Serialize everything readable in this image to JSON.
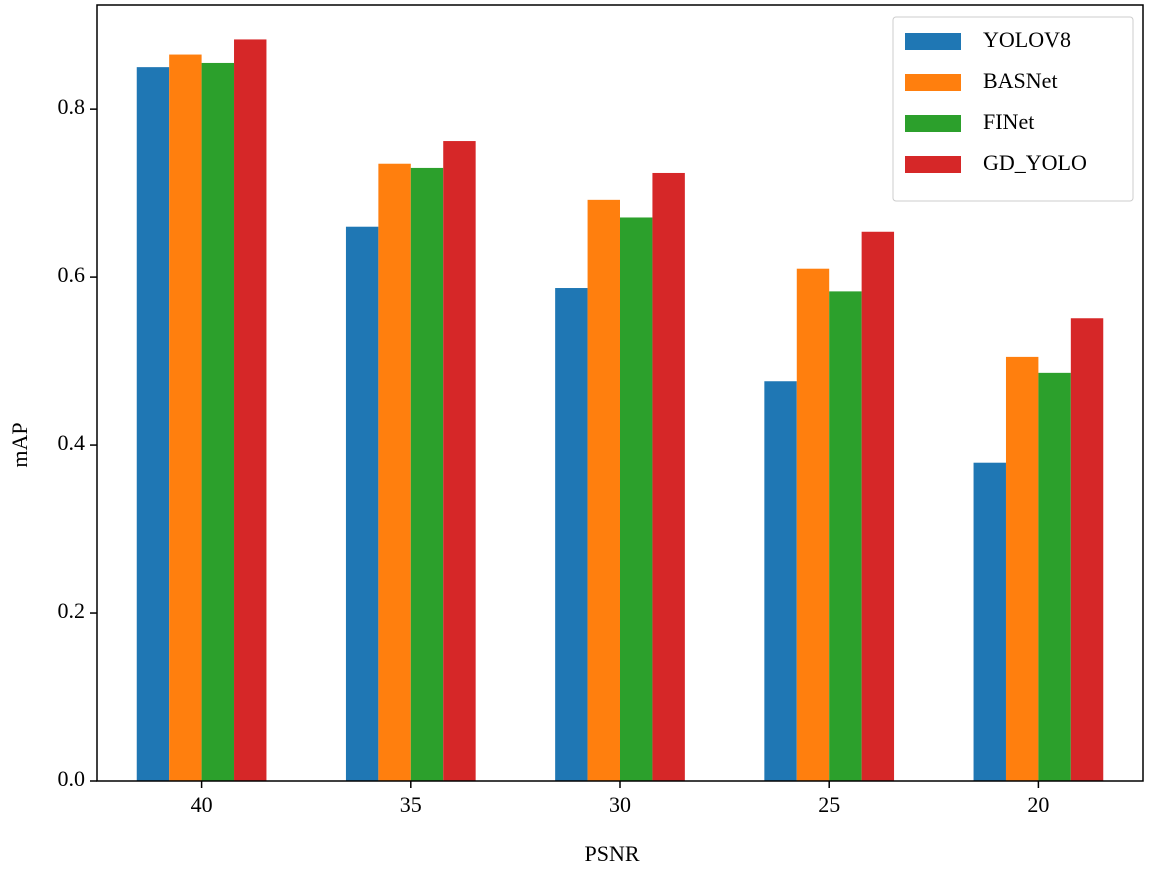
{
  "chart_data": {
    "type": "bar",
    "x_label": "PSNR",
    "y_label": "mAP",
    "categories": [
      "40",
      "35",
      "30",
      "25",
      "20"
    ],
    "series": [
      {
        "name": "YOLOV8",
        "color": "#1f77b4",
        "values": [
          0.85,
          0.66,
          0.587,
          0.476,
          0.379
        ]
      },
      {
        "name": "BASNet",
        "color": "#ff7f0e",
        "values": [
          0.865,
          0.735,
          0.692,
          0.61,
          0.505
        ]
      },
      {
        "name": "FINet",
        "color": "#2ca02c",
        "values": [
          0.855,
          0.73,
          0.671,
          0.583,
          0.486
        ]
      },
      {
        "name": "GD_YOLO",
        "color": "#d62728",
        "values": [
          0.883,
          0.762,
          0.724,
          0.654,
          0.551
        ]
      }
    ],
    "ylim": [
      0,
      0.924
    ],
    "yticks": [
      {
        "value": 0,
        "label": "0.0"
      },
      0.2,
      0.4,
      0.6,
      0.8
    ],
    "legend": "upper right",
    "grid": false
  }
}
